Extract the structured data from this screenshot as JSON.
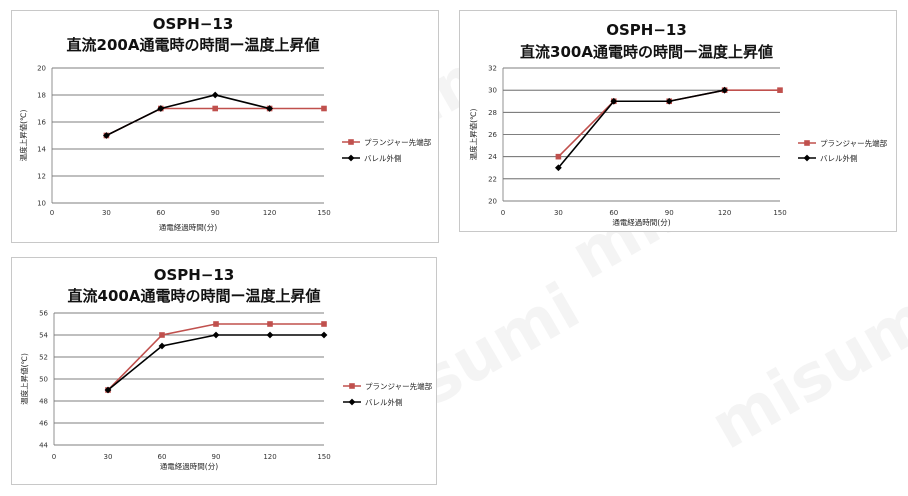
{
  "colors": {
    "plunger": "#c0504d",
    "barrel": "#000000",
    "grid": "#555555"
  },
  "watermark": "misumi",
  "chart_data": [
    {
      "type": "line",
      "title": "OSPH−13",
      "subtitle": "直流200A通電時の時間ー温度上昇値",
      "xlabel": "通電経過時間(分)",
      "ylabel": "温度上昇値(℃)",
      "x_ticks": [
        "0",
        "30",
        "60",
        "90",
        "120",
        "150"
      ],
      "y_ticks": [
        "10",
        "12",
        "14",
        "16",
        "18",
        "20"
      ],
      "xlim": [
        0,
        150
      ],
      "ylim": [
        10,
        20
      ],
      "legend_position": "right",
      "series": [
        {
          "name": "プランジャー先端部",
          "marker": "square",
          "x": [
            30,
            60,
            90,
            120,
            150
          ],
          "values": [
            15,
            17,
            17,
            17,
            17
          ]
        },
        {
          "name": "バレル外側",
          "marker": "diamond",
          "x": [
            30,
            60,
            90,
            120
          ],
          "values": [
            15,
            17,
            18,
            17
          ]
        }
      ]
    },
    {
      "type": "line",
      "title": "OSPH−13",
      "subtitle": "直流300A通電時の時間ー温度上昇値",
      "xlabel": "通電経過時間(分)",
      "ylabel": "温度上昇値(℃)",
      "x_ticks": [
        "0",
        "30",
        "60",
        "90",
        "120",
        "150"
      ],
      "y_ticks": [
        "20",
        "22",
        "24",
        "26",
        "28",
        "30",
        "32"
      ],
      "xlim": [
        0,
        150
      ],
      "ylim": [
        20,
        32
      ],
      "legend_position": "right",
      "series": [
        {
          "name": "プランジャー先端部",
          "marker": "square",
          "x": [
            30,
            60,
            90,
            120,
            150
          ],
          "values": [
            24,
            29,
            29,
            30,
            30
          ]
        },
        {
          "name": "バレル外側",
          "marker": "diamond",
          "x": [
            30,
            60,
            90,
            120
          ],
          "values": [
            23,
            29,
            29,
            30
          ]
        }
      ]
    },
    {
      "type": "line",
      "title": "OSPH−13",
      "subtitle": "直流400A通電時の時間ー温度上昇値",
      "xlabel": "通電経過時間(分)",
      "ylabel": "温度上昇値(℃)",
      "x_ticks": [
        "0",
        "30",
        "60",
        "90",
        "120",
        "150"
      ],
      "y_ticks": [
        "44",
        "46",
        "48",
        "50",
        "52",
        "54",
        "56"
      ],
      "xlim": [
        0,
        150
      ],
      "ylim": [
        44,
        56
      ],
      "legend_position": "right",
      "series": [
        {
          "name": "プランジャー先端部",
          "marker": "square",
          "x": [
            30,
            60,
            90,
            120,
            150
          ],
          "values": [
            49,
            54,
            55,
            55,
            55
          ]
        },
        {
          "name": "バレル外側",
          "marker": "diamond",
          "x": [
            30,
            60,
            90,
            120,
            150
          ],
          "values": [
            49,
            53,
            54,
            54,
            54
          ]
        }
      ]
    }
  ]
}
